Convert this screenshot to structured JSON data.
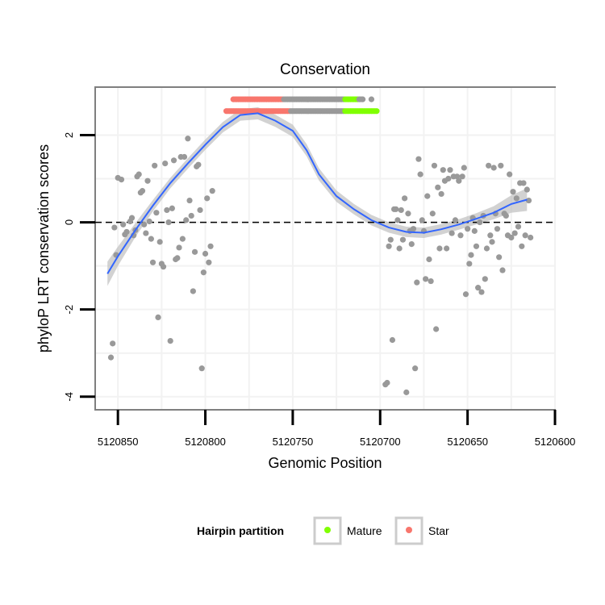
{
  "chart_data": {
    "type": "scatter",
    "title": "Conservation",
    "xlabel": "Genomic Position",
    "ylabel": "phyloP LRT conservation scores",
    "x_reversed": true,
    "xlim": [
      5120600,
      5120863
    ],
    "ylim": [
      -4.3,
      3.1
    ],
    "x_ticks": [
      5120850,
      5120800,
      5120750,
      5120700,
      5120650,
      5120600
    ],
    "x_tick_labels": [
      "5120850",
      "5120800",
      "5120750",
      "5120700",
      "5120650",
      "5120600"
    ],
    "y_ticks": [
      -4,
      -2,
      0,
      2
    ],
    "y_tick_labels": [
      "-4",
      "-2",
      "0",
      "2"
    ],
    "reference_line": {
      "y": 0,
      "style": "dashed"
    },
    "colors": {
      "points": "#999999",
      "smooth": "#3366ff",
      "band": "#bfbfbf",
      "mature": "#80ff00",
      "star": "#f8766d",
      "panel_border": "#7f7f7f",
      "grid": "#f2f2f2"
    },
    "legend": {
      "title": "Hairpin partition",
      "position": "bottom",
      "entries": [
        {
          "label": "Mature",
          "color": "#80ff00"
        },
        {
          "label": "Star",
          "color": "#f8766d"
        }
      ]
    },
    "points": [
      [
        5120854,
        -3.1
      ],
      [
        5120853,
        -2.78
      ],
      [
        5120852,
        -0.12
      ],
      [
        5120851,
        -0.75
      ],
      [
        5120850,
        1.02
      ],
      [
        5120848,
        0.98
      ],
      [
        5120847,
        -0.05
      ],
      [
        5120846,
        -0.28
      ],
      [
        5120845,
        -0.22
      ],
      [
        5120843,
        0.02
      ],
      [
        5120842,
        0.1
      ],
      [
        5120841,
        -0.3
      ],
      [
        5120840,
        -0.18
      ],
      [
        5120839,
        1.05
      ],
      [
        5120838,
        1.1
      ],
      [
        5120837,
        0.68
      ],
      [
        5120836,
        0.72
      ],
      [
        5120835,
        -0.05
      ],
      [
        5120834,
        -0.25
      ],
      [
        5120833,
        0.95
      ],
      [
        5120832,
        0.02
      ],
      [
        5120831,
        -0.38
      ],
      [
        5120830,
        -0.92
      ],
      [
        5120829,
        1.3
      ],
      [
        5120828,
        0.22
      ],
      [
        5120827,
        -2.18
      ],
      [
        5120826,
        -0.45
      ],
      [
        5120825,
        -0.95
      ],
      [
        5120824,
        -1.02
      ],
      [
        5120823,
        1.35
      ],
      [
        5120822,
        0.28
      ],
      [
        5120821,
        0.0
      ],
      [
        5120820,
        -2.72
      ],
      [
        5120819,
        0.32
      ],
      [
        5120818,
        1.42
      ],
      [
        5120817,
        -0.85
      ],
      [
        5120816,
        -0.82
      ],
      [
        5120815,
        -0.58
      ],
      [
        5120814,
        1.5
      ],
      [
        5120813,
        -0.38
      ],
      [
        5120812,
        1.5
      ],
      [
        5120811,
        0.05
      ],
      [
        5120810,
        1.92
      ],
      [
        5120809,
        0.5
      ],
      [
        5120808,
        0.15
      ],
      [
        5120807,
        -1.58
      ],
      [
        5120806,
        -0.68
      ],
      [
        5120805,
        1.28
      ],
      [
        5120804,
        1.32
      ],
      [
        5120803,
        0.28
      ],
      [
        5120802,
        -3.35
      ],
      [
        5120801,
        -1.15
      ],
      [
        5120800,
        -0.72
      ],
      [
        5120799,
        0.55
      ],
      [
        5120798,
        -0.92
      ],
      [
        5120797,
        -0.55
      ],
      [
        5120796,
        0.72
      ],
      [
        5120697,
        -3.72
      ],
      [
        5120696,
        -3.68
      ],
      [
        5120695,
        -0.55
      ],
      [
        5120694,
        -0.4
      ],
      [
        5120693,
        -2.7
      ],
      [
        5120692,
        0.3
      ],
      [
        5120691,
        0.3
      ],
      [
        5120690,
        0.05
      ],
      [
        5120689,
        -0.6
      ],
      [
        5120688,
        0.28
      ],
      [
        5120687,
        -0.4
      ],
      [
        5120686,
        0.55
      ],
      [
        5120685,
        -3.9
      ],
      [
        5120684,
        0.2
      ],
      [
        5120683,
        -0.2
      ],
      [
        5120682,
        -0.5
      ],
      [
        5120681,
        -0.15
      ],
      [
        5120680,
        -3.35
      ],
      [
        5120679,
        -1.38
      ],
      [
        5120678,
        1.45
      ],
      [
        5120677,
        1.1
      ],
      [
        5120676,
        0.05
      ],
      [
        5120675,
        -0.2
      ],
      [
        5120674,
        -1.3
      ],
      [
        5120673,
        0.6
      ],
      [
        5120672,
        -0.85
      ],
      [
        5120671,
        -1.35
      ],
      [
        5120670,
        0.2
      ],
      [
        5120669,
        1.3
      ],
      [
        5120668,
        -2.45
      ],
      [
        5120667,
        0.8
      ],
      [
        5120666,
        -0.6
      ],
      [
        5120665,
        0.65
      ],
      [
        5120664,
        1.2
      ],
      [
        5120663,
        0.95
      ],
      [
        5120662,
        -0.6
      ],
      [
        5120661,
        1.0
      ],
      [
        5120660,
        1.2
      ],
      [
        5120659,
        -0.25
      ],
      [
        5120658,
        1.05
      ],
      [
        5120657,
        0.05
      ],
      [
        5120656,
        1.05
      ],
      [
        5120655,
        0.95
      ],
      [
        5120654,
        -0.3
      ],
      [
        5120653,
        1.05
      ],
      [
        5120652,
        1.25
      ],
      [
        5120651,
        -1.65
      ],
      [
        5120650,
        -0.15
      ],
      [
        5120649,
        -0.95
      ],
      [
        5120648,
        -0.75
      ],
      [
        5120647,
        0.1
      ],
      [
        5120646,
        -0.2
      ],
      [
        5120645,
        -0.55
      ],
      [
        5120644,
        -1.5
      ],
      [
        5120643,
        0.0
      ],
      [
        5120642,
        -1.6
      ],
      [
        5120641,
        0.15
      ],
      [
        5120640,
        -1.3
      ],
      [
        5120639,
        -0.6
      ],
      [
        5120638,
        1.3
      ],
      [
        5120637,
        -0.3
      ],
      [
        5120636,
        -0.45
      ],
      [
        5120635,
        1.25
      ],
      [
        5120634,
        0.2
      ],
      [
        5120633,
        -0.15
      ],
      [
        5120632,
        -0.8
      ],
      [
        5120631,
        1.3
      ],
      [
        5120630,
        -1.1
      ],
      [
        5120629,
        0.2
      ],
      [
        5120628,
        0.15
      ],
      [
        5120627,
        -0.3
      ],
      [
        5120626,
        1.1
      ],
      [
        5120625,
        -0.35
      ],
      [
        5120624,
        0.7
      ],
      [
        5120623,
        -0.25
      ],
      [
        5120622,
        0.55
      ],
      [
        5120621,
        -0.1
      ],
      [
        5120620,
        0.9
      ],
      [
        5120619,
        -0.55
      ],
      [
        5120618,
        0.9
      ],
      [
        5120617,
        -0.3
      ],
      [
        5120616,
        0.75
      ],
      [
        5120615,
        0.5
      ],
      [
        5120614,
        -0.35
      ]
    ],
    "hairpin_rows": [
      {
        "y": 2.82,
        "x_start": 5120784,
        "x_end": 5120710,
        "star_until": 5120756,
        "mature_from": 5120720,
        "mature_to": 5120713,
        "extra_gray": [
          5120705
        ]
      },
      {
        "y": 2.55,
        "x_start": 5120788,
        "x_end": 5120702,
        "star_until": 5120752,
        "mature_from": 5120720,
        "mature_to": 5120702,
        "extra_gray": []
      }
    ],
    "smooth": [
      [
        5120856,
        -1.18
      ],
      [
        5120850,
        -0.78
      ],
      [
        5120840,
        -0.18
      ],
      [
        5120830,
        0.38
      ],
      [
        5120820,
        0.9
      ],
      [
        5120810,
        1.35
      ],
      [
        5120800,
        1.78
      ],
      [
        5120790,
        2.18
      ],
      [
        5120780,
        2.46
      ],
      [
        5120770,
        2.5
      ],
      [
        5120760,
        2.33
      ],
      [
        5120750,
        2.1
      ],
      [
        5120742,
        1.65
      ],
      [
        5120735,
        1.1
      ],
      [
        5120725,
        0.6
      ],
      [
        5120715,
        0.3
      ],
      [
        5120705,
        0.05
      ],
      [
        5120695,
        -0.12
      ],
      [
        5120685,
        -0.22
      ],
      [
        5120675,
        -0.24
      ],
      [
        5120665,
        -0.16
      ],
      [
        5120655,
        -0.05
      ],
      [
        5120645,
        0.08
      ],
      [
        5120635,
        0.22
      ],
      [
        5120625,
        0.42
      ],
      [
        5120616,
        0.52
      ]
    ],
    "smooth_se": [
      0.28,
      0.22,
      0.16,
      0.13,
      0.12,
      0.12,
      0.12,
      0.12,
      0.13,
      0.14,
      0.14,
      0.14,
      0.14,
      0.14,
      0.13,
      0.12,
      0.12,
      0.12,
      0.12,
      0.12,
      0.12,
      0.12,
      0.13,
      0.15,
      0.2,
      0.26
    ]
  }
}
